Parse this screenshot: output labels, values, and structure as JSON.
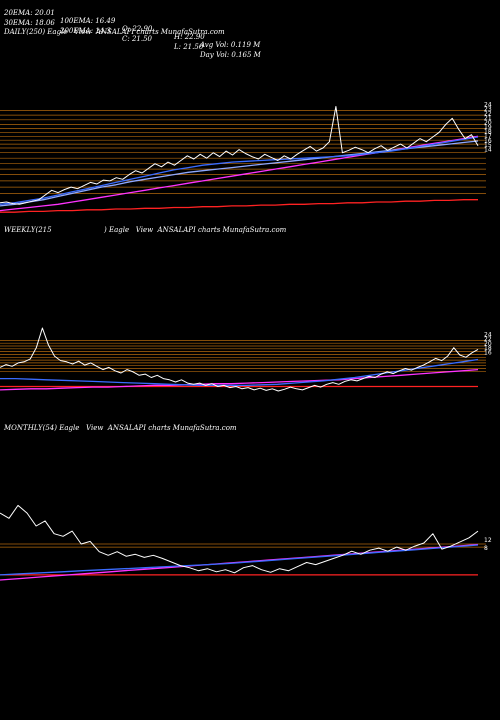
{
  "header": {
    "row1": [
      "20EMA: 20.01",
      "100EMA: 16.49",
      "O: 22.90",
      "H: 22.90",
      "Avg Vol: 0.119 M"
    ],
    "row2": [
      "30EMA: 18.06",
      "200EMA: 14.3",
      "C: 21.50",
      "L: 21.50",
      "Day Vol: 0.165 M"
    ]
  },
  "panels": {
    "daily_label": "DAILY(250) Eagle   View  ANSALAPI charts MunafaSutra.com",
    "weekly_label_a": "WEEKLY(215",
    "weekly_label_b": ") Eagle   View  ANSALAPI charts MunafaSutra.com",
    "monthly_label": "MONTHLY(54) Eagle   View  ANSALAPI charts MunafaSutra.com"
  },
  "colors": {
    "background": "#000000",
    "price": "#ffffff",
    "ema_short": "#3a6cff",
    "ema_mid": "#8fa8ff",
    "ema_long": "#ff33ff",
    "ema_longest": "#ff2222",
    "band": "#d07a10"
  },
  "chart_data": [
    {
      "type": "line",
      "name": "daily",
      "x_count": 250,
      "series": [
        {
          "key": "price",
          "values": [
            14.2,
            14.3,
            14.1,
            14.0,
            14.2,
            14.4,
            14.6,
            15.2,
            15.8,
            15.5,
            15.9,
            16.2,
            16.0,
            16.4,
            16.8,
            16.6,
            17.1,
            17.0,
            17.4,
            17.2,
            17.8,
            18.3,
            18.0,
            18.6,
            19.2,
            18.8,
            19.4,
            19.0,
            19.6,
            20.2,
            19.8,
            20.4,
            19.9,
            20.6,
            20.1,
            20.8,
            20.3,
            21.0,
            20.5,
            20.1,
            19.8,
            20.4,
            20.0,
            19.6,
            20.2,
            19.8,
            20.4,
            20.9,
            21.4,
            20.8,
            21.2,
            22.0,
            26.5,
            20.6,
            20.9,
            21.3,
            21.0,
            20.6,
            21.1,
            21.5,
            20.9,
            21.3,
            21.7,
            21.2,
            21.8,
            22.4,
            22.0,
            22.6,
            23.2,
            24.2,
            25.0,
            23.6,
            22.4,
            22.9,
            21.5
          ]
        },
        {
          "key": "ema_short",
          "values": [
            14.0,
            14.2,
            14.5,
            14.8,
            15.2,
            15.6,
            16.0,
            16.4,
            16.8,
            17.2,
            17.6,
            18.0,
            18.4,
            18.7,
            19.0,
            19.2,
            19.4,
            19.5,
            19.6,
            19.7,
            19.8,
            19.9,
            20.0,
            20.1,
            20.2,
            20.4,
            20.6,
            20.8,
            21.1,
            21.4,
            21.7,
            22.0,
            22.3,
            22.6
          ]
        },
        {
          "key": "ema_mid",
          "values": [
            13.8,
            14.0,
            14.3,
            14.6,
            15.0,
            15.4,
            15.8,
            16.2,
            16.5,
            16.9,
            17.2,
            17.5,
            17.8,
            18.1,
            18.3,
            18.5,
            18.7,
            18.9,
            19.1,
            19.3,
            19.5,
            19.7,
            19.9,
            20.1,
            20.3,
            20.5,
            20.7,
            20.9,
            21.1,
            21.3,
            21.5,
            21.7,
            21.9,
            22.1
          ]
        },
        {
          "key": "ema_long",
          "values": [
            13.2,
            13.4,
            13.6,
            13.8,
            14.0,
            14.3,
            14.6,
            14.9,
            15.2,
            15.5,
            15.8,
            16.1,
            16.4,
            16.7,
            17.0,
            17.3,
            17.6,
            17.9,
            18.2,
            18.5,
            18.8,
            19.1,
            19.4,
            19.7,
            20.0,
            20.3,
            20.6,
            20.9,
            21.2,
            21.5,
            21.8,
            22.1,
            22.4,
            22.7
          ]
        },
        {
          "key": "ema_longest",
          "values": [
            13.0,
            13.0,
            13.1,
            13.1,
            13.2,
            13.2,
            13.3,
            13.3,
            13.4,
            13.4,
            13.5,
            13.5,
            13.6,
            13.6,
            13.7,
            13.7,
            13.8,
            13.8,
            13.9,
            13.9,
            14.0,
            14.0,
            14.1,
            14.1,
            14.2,
            14.2,
            14.3,
            14.3,
            14.4,
            14.4,
            14.5,
            14.5,
            14.6,
            14.6
          ]
        }
      ],
      "bands": [
        26.0,
        25.4,
        24.8,
        24.2,
        23.7,
        23.2,
        22.7,
        22.2,
        21.7,
        21.2,
        20.6,
        19.9,
        19.2,
        18.5,
        17.8,
        17.0,
        16.2,
        15.4
      ],
      "ylim": [
        12.0,
        35.0
      ],
      "right_ticks": [
        "24",
        "23",
        "22",
        "21",
        "20",
        "19",
        "18",
        "17",
        "16",
        "15",
        "14"
      ]
    },
    {
      "type": "line",
      "name": "weekly",
      "x_count": 215,
      "series": [
        {
          "key": "price",
          "values": [
            17.0,
            17.5,
            17.2,
            17.8,
            18.0,
            18.5,
            20.5,
            24.0,
            21.0,
            19.0,
            18.2,
            18.0,
            17.6,
            18.1,
            17.4,
            17.8,
            17.2,
            16.6,
            17.0,
            16.4,
            16.0,
            16.6,
            16.2,
            15.6,
            15.8,
            15.2,
            15.6,
            15.0,
            14.8,
            14.4,
            14.8,
            14.2,
            14.0,
            14.2,
            13.8,
            14.1,
            13.6,
            13.8,
            13.4,
            13.6,
            13.2,
            13.4,
            13.0,
            13.3,
            12.9,
            13.2,
            12.8,
            13.1,
            13.5,
            13.2,
            13.0,
            13.4,
            13.8,
            13.5,
            14.0,
            14.3,
            14.0,
            14.5,
            14.8,
            14.6,
            15.0,
            15.4,
            15.2,
            15.8,
            16.2,
            15.9,
            16.4,
            16.8,
            16.5,
            17.0,
            17.4,
            18.0,
            18.6,
            18.2,
            19.0,
            20.5,
            19.2,
            18.8,
            19.6,
            20.2
          ]
        },
        {
          "key": "ema_short",
          "values": [
            15.0,
            15.0,
            14.9,
            14.8,
            14.7,
            14.6,
            14.5,
            14.4,
            14.3,
            14.2,
            14.1,
            14.0,
            13.9,
            13.8,
            13.8,
            13.8,
            13.8,
            13.9,
            14.0,
            14.2,
            14.4,
            14.6,
            14.9,
            15.2,
            15.6,
            16.0,
            16.4,
            16.8,
            17.2,
            17.6,
            18.0,
            18.4
          ]
        },
        {
          "key": "ema_long",
          "values": [
            13.0,
            13.1,
            13.2,
            13.2,
            13.3,
            13.4,
            13.5,
            13.5,
            13.6,
            13.7,
            13.8,
            13.8,
            13.9,
            14.0,
            14.1,
            14.1,
            14.2,
            14.3,
            14.4,
            14.5,
            14.6,
            14.7,
            14.8,
            15.0,
            15.2,
            15.4,
            15.6,
            15.8,
            16.0,
            16.2,
            16.4,
            16.6
          ]
        },
        {
          "key": "ema_longest",
          "values": [
            13.6,
            13.6,
            13.6,
            13.6,
            13.6,
            13.6,
            13.6,
            13.6,
            13.6,
            13.6,
            13.6,
            13.6,
            13.6,
            13.6,
            13.6,
            13.6,
            13.6,
            13.6,
            13.6,
            13.6,
            13.6,
            13.6,
            13.6,
            13.6,
            13.6,
            13.6,
            13.6,
            13.6,
            13.6,
            13.6,
            13.6,
            13.6
          ]
        }
      ],
      "bands": [
        21.8,
        21.3,
        20.8,
        20.3,
        19.8,
        19.3,
        18.8,
        18.3,
        17.8,
        17.3,
        16.8,
        16.3
      ],
      "ylim": [
        8.0,
        40.0
      ],
      "right_ticks": [
        "24",
        "22",
        "20",
        "18",
        "16"
      ]
    },
    {
      "type": "line",
      "name": "monthly",
      "x_count": 54,
      "series": [
        {
          "key": "price",
          "values": [
            30.0,
            29.0,
            31.5,
            30.0,
            27.5,
            28.5,
            26.0,
            25.5,
            26.5,
            24.0,
            24.5,
            22.5,
            21.8,
            22.5,
            21.6,
            22.0,
            21.4,
            21.8,
            21.2,
            20.5,
            19.8,
            19.4,
            18.8,
            19.2,
            18.6,
            19.0,
            18.4,
            19.4,
            19.8,
            19.0,
            18.5,
            19.2,
            18.8,
            19.6,
            20.4,
            20.0,
            20.6,
            21.2,
            21.8,
            22.6,
            22.0,
            22.8,
            23.2,
            22.6,
            23.4,
            22.8,
            23.6,
            24.2,
            26.0,
            23.0,
            23.6,
            24.4,
            25.2,
            26.5
          ]
        },
        {
          "key": "ema_short",
          "values": [
            18.0,
            18.2,
            18.4,
            18.6,
            18.8,
            19.0,
            19.2,
            19.4,
            19.6,
            19.8,
            20.0,
            20.2,
            20.5,
            20.8,
            21.1,
            21.4,
            21.7,
            22.0,
            22.3,
            22.6,
            22.9,
            23.2,
            23.5,
            23.8
          ]
        },
        {
          "key": "ema_long",
          "values": [
            17.0,
            17.3,
            17.6,
            17.9,
            18.2,
            18.5,
            18.8,
            19.1,
            19.4,
            19.7,
            20.0,
            20.3,
            20.6,
            20.9,
            21.2,
            21.5,
            21.8,
            22.1,
            22.4,
            22.7,
            23.0,
            23.3,
            23.6,
            23.9
          ]
        },
        {
          "key": "ema_longest",
          "values": [
            18.0,
            18.0,
            18.0,
            18.0,
            18.0,
            18.0,
            18.0,
            18.0,
            18.0,
            18.0,
            18.0,
            18.0,
            18.0,
            18.0,
            18.0,
            18.0,
            18.0,
            18.0,
            18.0,
            18.0,
            18.0,
            18.0,
            18.0,
            18.0
          ]
        }
      ],
      "bands": [
        24.0,
        23.4
      ],
      "ylim": [
        10.0,
        45.0
      ],
      "right_ticks": [
        "12",
        "8"
      ]
    }
  ]
}
